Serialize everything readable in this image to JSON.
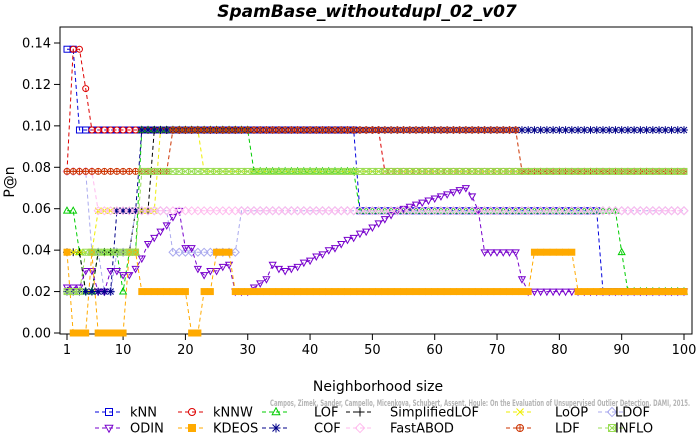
{
  "chart_data": {
    "type": "line",
    "title": "SpamBase_withoutdupl_02_v07",
    "xlabel": "Neighborhood size",
    "ylabel": "P@n",
    "xlim": [
      1,
      100
    ],
    "ylim": [
      0,
      0.145
    ],
    "xticks": [
      1,
      10,
      20,
      30,
      40,
      50,
      60,
      70,
      80,
      90,
      100
    ],
    "yticks": [
      0.0,
      0.02,
      0.04,
      0.06,
      0.08,
      0.1,
      0.12,
      0.14
    ],
    "ytick_labels": [
      "0.00",
      "0.02",
      "0.04",
      "0.06",
      "0.08",
      "0.10",
      "0.12",
      "0.14"
    ],
    "grid": false,
    "legend_position": "bottom",
    "watermark": "Campos, Zimek, Sander, Campello, Micenkova, Schubert, Assent, Houle: On the Evaluation of Unsupervised Outlier Detection. DAMI, 2015.",
    "series": [
      {
        "name": "kNN",
        "color": "#0000dd",
        "marker": "square",
        "points": [
          [
            1,
            0.137
          ],
          [
            2,
            0.137
          ],
          [
            3,
            0.098
          ],
          [
            20,
            0.098
          ],
          [
            47,
            0.098
          ],
          [
            48,
            0.059
          ],
          [
            86,
            0.059
          ],
          [
            87,
            0.02
          ],
          [
            100,
            0.02
          ]
        ]
      },
      {
        "name": "kNNW",
        "color": "#dd0000",
        "marker": "circle",
        "points": [
          [
            1,
            0.078
          ],
          [
            2,
            0.137
          ],
          [
            3,
            0.137
          ],
          [
            4,
            0.118
          ],
          [
            5,
            0.098
          ],
          [
            50,
            0.098
          ],
          [
            52,
            0.078
          ],
          [
            100,
            0.078
          ]
        ]
      },
      {
        "name": "LOF",
        "color": "#00cc00",
        "marker": "triangle-up",
        "points": [
          [
            1,
            0.059
          ],
          [
            2,
            0.059
          ],
          [
            3,
            0.039
          ],
          [
            4,
            0.02
          ],
          [
            6,
            0.039
          ],
          [
            9,
            0.039
          ],
          [
            10,
            0.02
          ],
          [
            11,
            0.039
          ],
          [
            13,
            0.098
          ],
          [
            30,
            0.098
          ],
          [
            31,
            0.078
          ],
          [
            47,
            0.078
          ],
          [
            48,
            0.059
          ],
          [
            89,
            0.059
          ],
          [
            90,
            0.039
          ],
          [
            91,
            0.02
          ],
          [
            100,
            0.02
          ]
        ]
      },
      {
        "name": "SimplifiedLOF",
        "color": "#000000",
        "marker": "plus",
        "points": [
          [
            1,
            0.039
          ],
          [
            2,
            0.039
          ],
          [
            3,
            0.039
          ],
          [
            4,
            0.02
          ],
          [
            6,
            0.039
          ],
          [
            11,
            0.039
          ],
          [
            12,
            0.059
          ],
          [
            14,
            0.059
          ],
          [
            15,
            0.098
          ],
          [
            28,
            0.098
          ]
        ]
      },
      {
        "name": "LoOP",
        "color": "#eeee00",
        "marker": "x",
        "points": [
          [
            1,
            0.039
          ],
          [
            2,
            0.039
          ],
          [
            3,
            0.039
          ],
          [
            6,
            0.059
          ],
          [
            15,
            0.059
          ],
          [
            16,
            0.098
          ],
          [
            22,
            0.098
          ],
          [
            23,
            0.078
          ],
          [
            100,
            0.078
          ]
        ]
      },
      {
        "name": "LDOF",
        "color": "#aaaaee",
        "marker": "diamond",
        "points": [
          [
            1,
            0.078
          ],
          [
            4,
            0.078
          ],
          [
            5,
            0.039
          ],
          [
            7,
            0.02
          ],
          [
            9,
            0.039
          ],
          [
            12,
            0.059
          ],
          [
            14,
            0.059
          ],
          [
            18,
            0.039
          ],
          [
            28,
            0.039
          ],
          [
            29,
            0.059
          ],
          [
            100,
            0.059
          ]
        ]
      },
      {
        "name": "ODIN",
        "color": "#7700cc",
        "marker": "triangle-down",
        "points": [
          [
            1,
            0.022
          ],
          [
            2,
            0.022
          ],
          [
            4,
            0.03
          ],
          [
            6,
            0.02
          ],
          [
            8,
            0.03
          ],
          [
            10,
            0.028
          ],
          [
            12,
            0.031
          ],
          [
            13,
            0.036
          ],
          [
            14,
            0.043
          ],
          [
            15,
            0.046
          ],
          [
            16,
            0.049
          ],
          [
            17,
            0.052
          ],
          [
            18,
            0.056
          ],
          [
            19,
            0.059
          ],
          [
            20,
            0.041
          ],
          [
            21,
            0.041
          ],
          [
            22,
            0.031
          ],
          [
            23,
            0.028
          ],
          [
            24,
            0.03
          ],
          [
            25,
            0.03
          ],
          [
            26,
            0.032
          ],
          [
            27,
            0.033
          ],
          [
            28,
            0.02
          ],
          [
            29,
            0.02
          ],
          [
            30,
            0.02
          ],
          [
            31,
            0.022
          ],
          [
            32,
            0.024
          ],
          [
            33,
            0.026
          ],
          [
            34,
            0.033
          ],
          [
            35,
            0.031
          ],
          [
            36,
            0.03
          ],
          [
            37,
            0.031
          ],
          [
            38,
            0.032
          ],
          [
            39,
            0.034
          ],
          [
            40,
            0.035
          ],
          [
            41,
            0.037
          ],
          [
            42,
            0.038
          ],
          [
            43,
            0.04
          ],
          [
            44,
            0.041
          ],
          [
            45,
            0.043
          ],
          [
            46,
            0.045
          ],
          [
            47,
            0.046
          ],
          [
            48,
            0.048
          ],
          [
            49,
            0.049
          ],
          [
            50,
            0.051
          ],
          [
            51,
            0.053
          ],
          [
            52,
            0.055
          ],
          [
            53,
            0.057
          ],
          [
            54,
            0.059
          ],
          [
            55,
            0.06
          ],
          [
            56,
            0.061
          ],
          [
            57,
            0.062
          ],
          [
            58,
            0.063
          ],
          [
            59,
            0.064
          ],
          [
            60,
            0.065
          ],
          [
            61,
            0.066
          ],
          [
            62,
            0.067
          ],
          [
            63,
            0.068
          ],
          [
            64,
            0.069
          ],
          [
            65,
            0.07
          ],
          [
            66,
            0.066
          ],
          [
            67,
            0.059
          ],
          [
            68,
            0.039
          ],
          [
            73,
            0.039
          ],
          [
            74,
            0.026
          ],
          [
            75,
            0.02
          ],
          [
            100,
            0.02
          ]
        ]
      },
      {
        "name": "KDEOS",
        "color": "#ffaa00",
        "marker": "square-filled",
        "points": [
          [
            1,
            0.039
          ],
          [
            2,
            0.0
          ],
          [
            5,
            0.039
          ],
          [
            6,
            0.0
          ],
          [
            10,
            0.0
          ],
          [
            11,
            0.039
          ],
          [
            12,
            0.039
          ],
          [
            13,
            0.02
          ],
          [
            20,
            0.02
          ],
          [
            21,
            0.0
          ],
          [
            22,
            0.0
          ],
          [
            23,
            0.02
          ],
          [
            24,
            0.02
          ],
          [
            25,
            0.039
          ],
          [
            27,
            0.039
          ],
          [
            28,
            0.02
          ],
          [
            75,
            0.02
          ],
          [
            76,
            0.039
          ],
          [
            82,
            0.039
          ],
          [
            83,
            0.02
          ],
          [
            100,
            0.02
          ]
        ]
      },
      {
        "name": "COF",
        "color": "#000088",
        "marker": "asterisk",
        "points": [
          [
            1,
            0.02
          ],
          [
            8,
            0.02
          ],
          [
            9,
            0.059
          ],
          [
            12,
            0.059
          ],
          [
            13,
            0.098
          ],
          [
            100,
            0.098
          ]
        ]
      },
      {
        "name": "FastABOD",
        "color": "#ffbbee",
        "marker": "diamond",
        "points": [
          [
            1,
            0.078
          ],
          [
            5,
            0.078
          ],
          [
            6,
            0.059
          ],
          [
            100,
            0.059
          ]
        ]
      },
      {
        "name": "LDF",
        "color": "#cc3300",
        "marker": "circle-plus",
        "points": [
          [
            1,
            0.078
          ],
          [
            17,
            0.078
          ],
          [
            18,
            0.098
          ],
          [
            73,
            0.098
          ],
          [
            74,
            0.078
          ],
          [
            100,
            0.078
          ]
        ]
      },
      {
        "name": "INFLO",
        "color": "#99dd55",
        "marker": "square-x",
        "points": [
          [
            1,
            0.02
          ],
          [
            3,
            0.02
          ],
          [
            4,
            0.039
          ],
          [
            11,
            0.039
          ],
          [
            13,
            0.078
          ],
          [
            100,
            0.078
          ]
        ]
      }
    ]
  }
}
